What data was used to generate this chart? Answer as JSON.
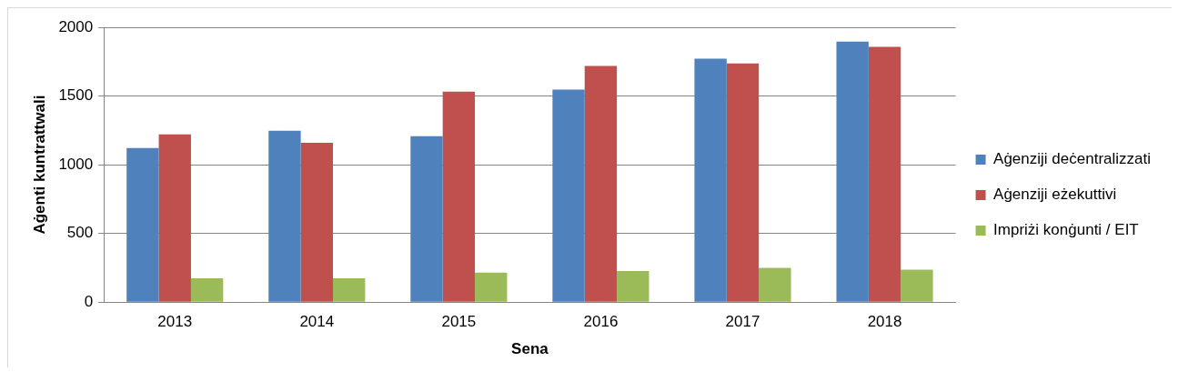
{
  "chart_data": {
    "type": "bar",
    "xlabel": "Sena",
    "ylabel": "Aġenti kuntrattwali",
    "categories": [
      "2013",
      "2014",
      "2015",
      "2016",
      "2017",
      "2018"
    ],
    "series": [
      {
        "name": "Aġenziji deċentralizzati",
        "color": "#4f81bd",
        "values": [
          1122,
          1247,
          1208,
          1547,
          1771,
          1896
        ]
      },
      {
        "name": "Aġenziji eżekuttivi",
        "color": "#c0504d",
        "values": [
          1221,
          1159,
          1531,
          1719,
          1737,
          1857
        ]
      },
      {
        "name": "Impriżi konġunti / EIT",
        "color": "#9bbb59",
        "values": [
          174,
          174,
          214,
          227,
          250,
          237
        ]
      }
    ],
    "ylim": [
      0,
      2000
    ],
    "yticks": [
      0,
      500,
      1000,
      1500,
      2000
    ],
    "grid": "y",
    "legend": "right"
  }
}
